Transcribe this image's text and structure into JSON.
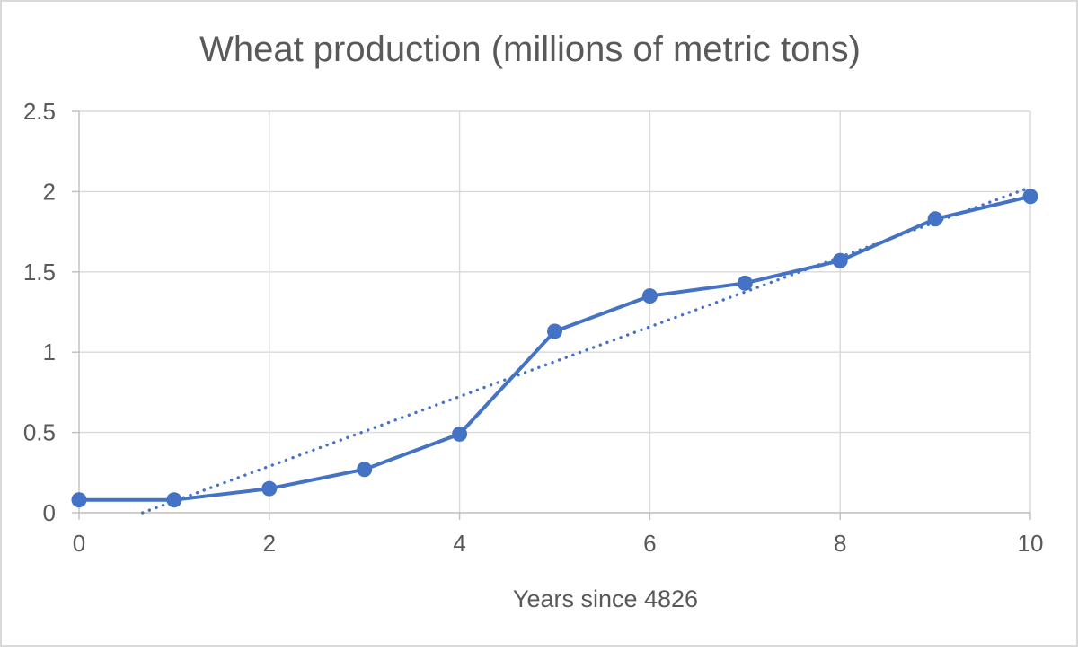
{
  "chart_data": {
    "type": "line",
    "title": "Wheat production (millions of metric tons)",
    "xlabel": "Years since 4826",
    "ylabel": "",
    "x": [
      0,
      1,
      2,
      3,
      4,
      5,
      6,
      7,
      8,
      9,
      10
    ],
    "series": [
      {
        "name": "Wheat production",
        "line": "solid",
        "marker": "circle",
        "values": [
          0.08,
          0.08,
          0.15,
          0.27,
          0.49,
          1.13,
          1.35,
          1.43,
          1.57,
          1.83,
          1.97
        ]
      }
    ],
    "trendline": {
      "type": "linear",
      "style": "dotted",
      "clip_at_y": 0
    },
    "xlim": [
      0,
      10
    ],
    "ylim": [
      0,
      2.5
    ],
    "xticks": [
      0,
      2,
      4,
      6,
      8,
      10
    ],
    "xtick_labels": [
      "0",
      "2",
      "4",
      "6",
      "8",
      "10"
    ],
    "yticks": [
      0,
      0.5,
      1,
      1.5,
      2,
      2.5
    ],
    "ytick_labels": [
      "0",
      "0.5",
      "1",
      "1.5",
      "2",
      "2.5"
    ],
    "grid": true,
    "legend": false,
    "colors": {
      "series": "#4472C4",
      "trendline": "#4472C4",
      "gridline": "#D9D9D9",
      "axis_line": "#BFBFBF",
      "text": "#595959",
      "border": "#D9D9D9",
      "background": "#FFFFFF"
    }
  }
}
